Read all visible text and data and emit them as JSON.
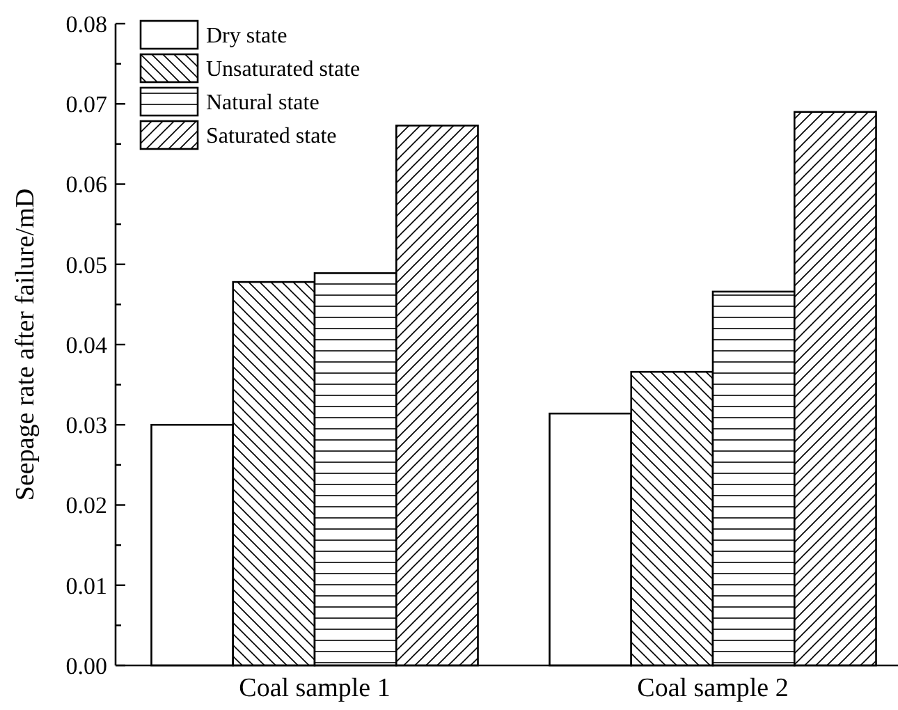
{
  "chart_data": {
    "type": "bar",
    "ylabel": "Seepage rate after failure/mD",
    "categories": [
      "Coal sample 1",
      "Coal sample 2"
    ],
    "series": [
      {
        "name": "Dry state",
        "color": "#000000",
        "values": [
          0.03,
          0.0314
        ]
      },
      {
        "name": "Unsaturated state",
        "color": "#000000",
        "values": [
          0.0478,
          0.0366
        ]
      },
      {
        "name": "Natural state",
        "color": "#000000",
        "values": [
          0.0489,
          0.0466
        ]
      },
      {
        "name": "Saturated state",
        "color": "#000000",
        "values": [
          0.0673,
          0.069
        ]
      }
    ],
    "ylim": [
      0,
      0.08
    ],
    "yticks": [
      {
        "value": 0,
        "label": "0.00"
      },
      {
        "value": 0.005,
        "label": null
      },
      {
        "value": 0.01,
        "label": "0.01"
      },
      {
        "value": 0.015,
        "label": null
      },
      {
        "value": 0.02,
        "label": "0.02"
      },
      {
        "value": 0.025,
        "label": null
      },
      {
        "value": 0.03,
        "label": "0.03"
      },
      {
        "value": 0.035,
        "label": null
      },
      {
        "value": 0.04,
        "label": "0.04"
      },
      {
        "value": 0.045,
        "label": null
      },
      {
        "value": 0.05,
        "label": "0.05"
      },
      {
        "value": 0.055,
        "label": null
      },
      {
        "value": 0.06,
        "label": "0.06"
      },
      {
        "value": 0.065,
        "label": null
      },
      {
        "value": 0.07,
        "label": "0.07"
      },
      {
        "value": 0.075,
        "label": null
      },
      {
        "value": 0.08,
        "label": "0.08"
      }
    ],
    "grid": false,
    "legend": "top left"
  }
}
